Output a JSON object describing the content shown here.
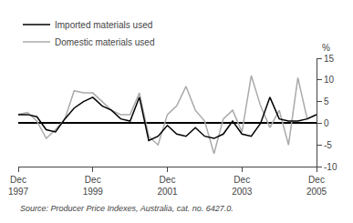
{
  "chart_data": {
    "type": "line",
    "ylabel": "%",
    "annotations": [
      "Source: Producer Price Indexes, Australia, cat. no. 6427.0."
    ],
    "categories": [
      "Dec\n1997",
      null,
      null,
      null,
      null,
      null,
      null,
      null,
      "Dec\n1999",
      null,
      null,
      null,
      null,
      null,
      null,
      null,
      "Dec\n2001",
      null,
      null,
      null,
      null,
      null,
      null,
      null,
      "Dec\n2003",
      null,
      null,
      null,
      null,
      null,
      null,
      null,
      "Dec\n2005"
    ],
    "series": [
      {
        "name": "Domestic materials used",
        "color": "#aaaaaa",
        "values": [
          2.0,
          2.5,
          0.5,
          -3.5,
          -1.5,
          1.0,
          7.5,
          7.0,
          7.0,
          5.0,
          3.0,
          2.0,
          2.0,
          7.0,
          -3.0,
          -5.0,
          2.0,
          4.0,
          8.5,
          3.0,
          0.5,
          -7.0,
          1.0,
          3.0,
          -2.0,
          11.0,
          4.0,
          -1.0,
          3.0,
          -5.0,
          10.5,
          1.0,
          2.0
        ]
      },
      {
        "name": "Imported materials used",
        "color": "#000000",
        "values": [
          2.0,
          2.0,
          1.5,
          -1.5,
          -2.0,
          1.0,
          3.5,
          5.0,
          6.0,
          4.0,
          3.0,
          1.0,
          0.5,
          6.0,
          -4.0,
          -3.0,
          -0.5,
          -2.5,
          -3.0,
          -1.0,
          -3.0,
          -3.5,
          -2.5,
          0.5,
          -2.5,
          -3.0,
          0.0,
          6.0,
          1.0,
          0.5,
          0.5,
          1.0,
          2.0
        ]
      }
    ],
    "ylim": [
      -10,
      15
    ],
    "yticks": [
      -10,
      -5,
      0,
      5,
      10,
      15
    ],
    "grid": false,
    "legend": "top left"
  }
}
